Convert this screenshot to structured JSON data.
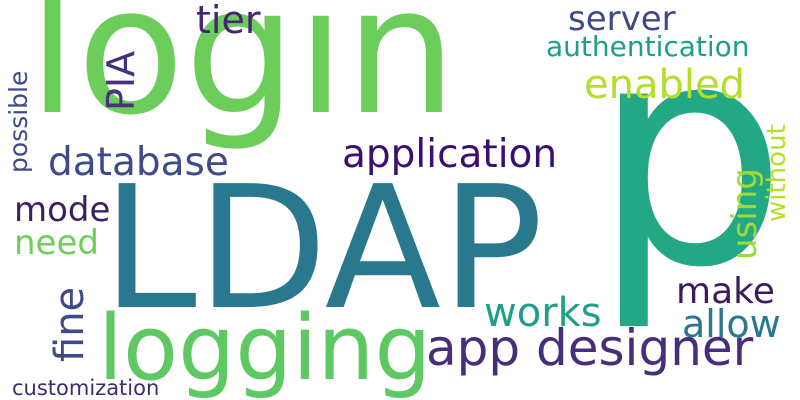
{
  "word_cloud": {
    "words": [
      {
        "text": "login",
        "color": "#6ccd5a",
        "orientation": "horizontal"
      },
      {
        "text": "p",
        "color": "#22a884",
        "orientation": "horizontal"
      },
      {
        "text": "LDAP",
        "color": "#2a788e",
        "orientation": "horizontal"
      },
      {
        "text": "logging",
        "color": "#5ec962",
        "orientation": "horizontal"
      },
      {
        "text": "app designer",
        "color": "#472d7b",
        "orientation": "horizontal"
      },
      {
        "text": "application",
        "color": "#3b0f70",
        "orientation": "horizontal"
      },
      {
        "text": "database",
        "color": "#3e4a89",
        "orientation": "horizontal"
      },
      {
        "text": "tier",
        "color": "#482475",
        "orientation": "horizontal"
      },
      {
        "text": "server",
        "color": "#3e4989",
        "orientation": "horizontal"
      },
      {
        "text": "authentication",
        "color": "#1f9e89",
        "orientation": "horizontal"
      },
      {
        "text": "enabled",
        "color": "#b5de2b",
        "orientation": "horizontal"
      },
      {
        "text": "PIA",
        "color": "#46327e",
        "orientation": "vertical"
      },
      {
        "text": "possible",
        "color": "#3e4a89",
        "orientation": "vertical"
      },
      {
        "text": "mode",
        "color": "#3e1f5e",
        "orientation": "horizontal"
      },
      {
        "text": "need",
        "color": "#6ece58",
        "orientation": "horizontal"
      },
      {
        "text": "fine",
        "color": "#3e4a89",
        "orientation": "vertical"
      },
      {
        "text": "works",
        "color": "#1f9e89",
        "orientation": "horizontal"
      },
      {
        "text": "make",
        "color": "#3b1c5e",
        "orientation": "horizontal"
      },
      {
        "text": "allow",
        "color": "#2a788e",
        "orientation": "horizontal"
      },
      {
        "text": "using",
        "color": "#a0da39",
        "orientation": "vertical"
      },
      {
        "text": "without",
        "color": "#b8de29",
        "orientation": "vertical"
      },
      {
        "text": "customization",
        "color": "#3e2d6e",
        "orientation": "horizontal"
      }
    ]
  }
}
